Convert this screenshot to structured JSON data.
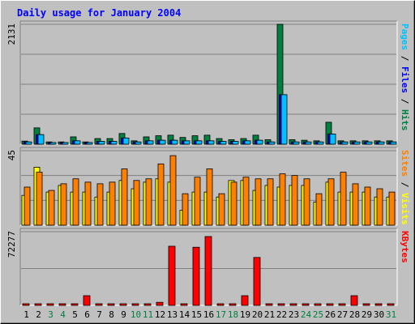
{
  "chart_data": {
    "type": "bar",
    "title": "Daily usage for January 2004",
    "categories": [
      "1",
      "2",
      "3",
      "4",
      "5",
      "6",
      "7",
      "8",
      "9",
      "10",
      "11",
      "12",
      "13",
      "14",
      "15",
      "16",
      "17",
      "18",
      "19",
      "20",
      "21",
      "22",
      "23",
      "24",
      "25",
      "26",
      "27",
      "28",
      "29",
      "30",
      "31"
    ],
    "weekend_days": [
      "3",
      "4",
      "10",
      "11",
      "17",
      "18",
      "24",
      "25",
      "31"
    ],
    "panels": [
      {
        "name": "pages-files-hits",
        "ymax_label": "2131",
        "ymax": 2131,
        "right_label_parts": [
          {
            "text": "Pages",
            "color": "#00c0ff"
          },
          {
            "text": " / ",
            "color": "#000000"
          },
          {
            "text": "Files",
            "color": "#0000ff"
          },
          {
            "text": " / ",
            "color": "#000000"
          },
          {
            "text": "Hits",
            "color": "#008040"
          }
        ],
        "series": [
          {
            "name": "Hits",
            "color": "#008040",
            "values": [
              55,
              290,
              40,
              40,
              130,
              40,
              100,
              100,
              190,
              60,
              130,
              150,
              160,
              120,
              150,
              160,
              100,
              80,
              100,
              160,
              80,
              2131,
              80,
              70,
              60,
              390,
              60,
              60,
              60,
              60,
              60
            ]
          },
          {
            "name": "Files",
            "color": "#0000ff",
            "values": [
              40,
              170,
              30,
              30,
              60,
              30,
              50,
              50,
              110,
              40,
              60,
              70,
              70,
              60,
              60,
              60,
              50,
              50,
              60,
              70,
              40,
              880,
              40,
              40,
              40,
              180,
              40,
              40,
              40,
              40,
              40
            ]
          },
          {
            "name": "Pages",
            "color": "#00c0ff",
            "values": [
              40,
              170,
              30,
              30,
              60,
              30,
              50,
              50,
              110,
              40,
              60,
              70,
              70,
              60,
              60,
              60,
              50,
              50,
              60,
              70,
              40,
              880,
              40,
              40,
              40,
              180,
              40,
              40,
              40,
              40,
              40
            ]
          }
        ]
      },
      {
        "name": "sites-visits",
        "ymax_label": "45",
        "ymax": 45,
        "right_label_parts": [
          {
            "text": "Sites",
            "color": "#ff8000"
          },
          {
            "text": " / ",
            "color": "#000000"
          },
          {
            "text": "Visits",
            "color": "#ffff00"
          }
        ],
        "series": [
          {
            "name": "Visits",
            "color": "#ffff00",
            "values": [
              18,
              35,
              20,
              24,
              20,
              20,
              17,
              20,
              27,
              22,
              26,
              28,
              26,
              9,
              20,
              20,
              17,
              27,
              27,
              21,
              24,
              23,
              24,
              24,
              14,
              26,
              20,
              20,
              20,
              17,
              17
            ]
          },
          {
            "name": "Sites",
            "color": "#ff8000",
            "values": [
              23,
              32,
              21,
              25,
              28,
              26,
              25,
              26,
              34,
              27,
              28,
              37,
              42,
              19,
              29,
              34,
              19,
              26,
              29,
              28,
              28,
              31,
              30,
              28,
              19,
              28,
              32,
              25,
              23,
              22,
              20
            ]
          }
        ]
      },
      {
        "name": "kbytes",
        "ymax_label": "72277",
        "ymax": 72277,
        "right_label_parts": [
          {
            "text": "KBytes",
            "color": "#ff0000"
          }
        ],
        "series": [
          {
            "name": "KBytes",
            "color": "#ff0000",
            "values": [
              800,
              800,
              800,
              800,
              800,
              9500,
              800,
              800,
              800,
              800,
              1500,
              3000,
              58000,
              800,
              57000,
              67500,
              800,
              800,
              9500,
              47000,
              800,
              800,
              800,
              800,
              800,
              800,
              800,
              9500,
              800,
              800,
              800
            ]
          }
        ]
      }
    ]
  },
  "colors": {
    "title": "#0000ff",
    "weekday_label": "#000000",
    "weekend_label": "#008040",
    "panel_bg": "#c0c0c0",
    "gridline": "#808080"
  }
}
